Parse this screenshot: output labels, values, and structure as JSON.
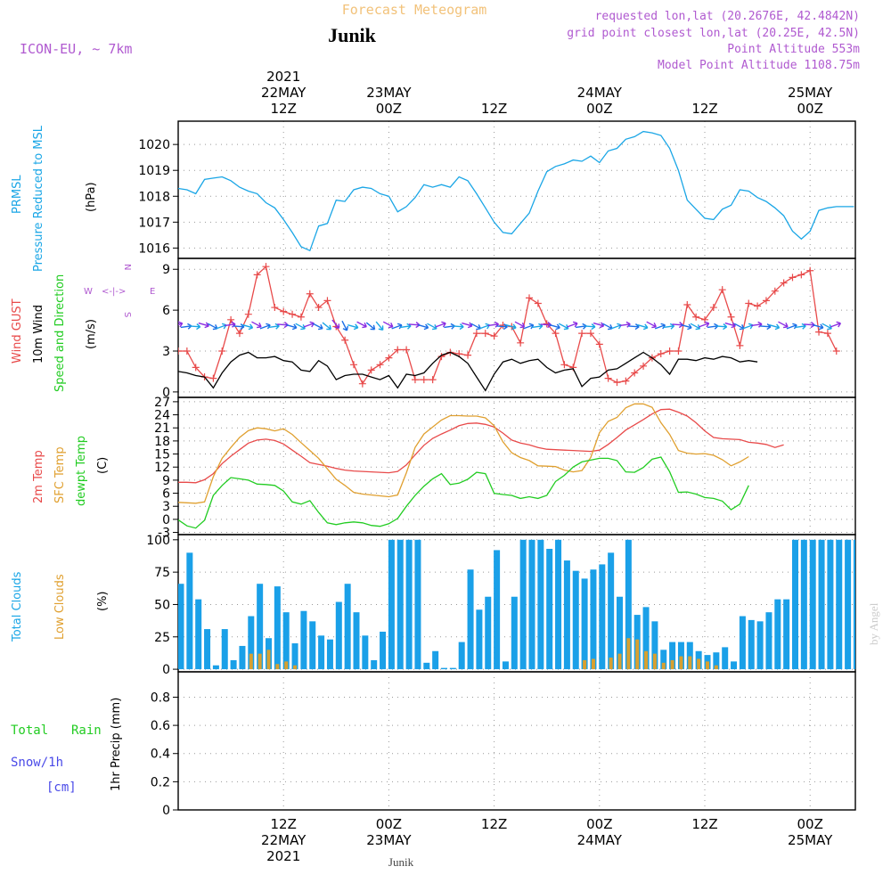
{
  "header": {
    "title": "Forecast Meteogram",
    "station": "Junik",
    "model": "ICON-EU, ~ 7km",
    "requested": "requested lon,lat (20.2676E, 42.4842N)",
    "gridpoint": "grid point closest lon,lat (20.25E, 42.5N)",
    "point_alt": "Point Altitude 553m",
    "model_alt": "Model Point Altitude 1108.75m",
    "footer_station": "Junik",
    "credit": "by Angel"
  },
  "colors": {
    "pressure": "#1aa6e6",
    "gust": "#e84a4a",
    "wind10m": "#000000",
    "temp2m": "#e84a4a",
    "sfc": "#e0a030",
    "dewpt": "#22cc22",
    "total_clouds": "#1aa0e8",
    "low_clouds": "#d8a030",
    "label_blue": "#1aa6e6",
    "label_red": "#e84a4a",
    "label_green": "#22cc22",
    "label_orange": "#e0a030",
    "label_purple": "#b05ad0",
    "snow_blue": "#4a4ae8"
  },
  "time_axis": {
    "top_labels": [
      {
        "lines": [
          "2021",
          "22MAY",
          "12Z"
        ]
      },
      {
        "lines": [
          "23MAY",
          "00Z"
        ]
      },
      {
        "lines": [
          "12Z"
        ]
      },
      {
        "lines": [
          "24MAY",
          "00Z"
        ]
      },
      {
        "lines": [
          "12Z"
        ]
      },
      {
        "lines": [
          "25MAY",
          "00Z"
        ]
      }
    ],
    "bottom_labels": [
      {
        "lines": [
          "12Z",
          "22MAY",
          "2021"
        ]
      },
      {
        "lines": [
          "00Z",
          "23MAY"
        ]
      },
      {
        "lines": [
          "12Z"
        ]
      },
      {
        "lines": [
          "00Z",
          "24MAY"
        ]
      },
      {
        "lines": [
          "12Z"
        ]
      },
      {
        "lines": [
          "00Z",
          "25MAY"
        ]
      }
    ]
  },
  "panel_labels": {
    "pressure": {
      "l1": "PRMSL",
      "l2": "Pressure Reduced to MSL",
      "unit": "(hPa)"
    },
    "wind": {
      "l1": "Wind GUST",
      "l2": "10m Wind",
      "l3": "Speed and Direction",
      "unit": "(m/s)",
      "compass_w": "W",
      "compass_e": "E",
      "compass_n": "N",
      "compass_s": "S"
    },
    "temp": {
      "l1": "2m Temp",
      "l2": "SFC Temp",
      "l3": "dewpt Temp",
      "unit": "(C)"
    },
    "cloud": {
      "l1": "Total Clouds",
      "l2": "Low Clouds",
      "unit": "(%)"
    },
    "precip": {
      "l1": "Total",
      "l1b": "Rain",
      "l2": "Snow/1h",
      "l3": "[cm]",
      "unit": "1hr Precip (mm)"
    }
  },
  "chart_data": [
    {
      "type": "line",
      "x_unit": "hours since 22MAY 00Z",
      "ylabel": "(hPa)",
      "ylim": [
        1015.6,
        1020.9
      ],
      "yticks": [
        1016,
        1017,
        1018,
        1019,
        1020
      ],
      "grid": true,
      "series": [
        {
          "name": "PRMSL",
          "x": [
            0,
            1,
            2,
            3,
            4,
            5,
            6,
            7,
            8,
            9,
            10,
            11,
            12,
            13,
            14,
            15,
            16,
            17,
            18,
            19,
            20,
            21,
            22,
            23,
            24,
            25,
            26,
            27,
            28,
            29,
            30,
            31,
            32,
            33,
            34,
            35,
            36,
            37,
            38,
            39,
            40,
            41,
            42,
            43,
            44,
            45,
            46,
            47,
            48,
            49,
            50,
            51,
            52,
            53,
            54,
            55,
            56,
            57,
            58,
            59,
            60,
            61,
            62,
            63,
            64,
            65,
            66,
            67,
            68,
            69,
            70,
            71,
            72,
            73,
            74,
            75,
            76,
            77
          ],
          "values": [
            1018.3,
            1018.25,
            1018.1,
            1018.65,
            1018.7,
            1018.75,
            1018.6,
            1018.35,
            1018.2,
            1018.1,
            1017.75,
            1017.55,
            1017.1,
            1016.6,
            1016.05,
            1015.9,
            1016.85,
            1016.95,
            1017.85,
            1017.8,
            1018.25,
            1018.35,
            1018.3,
            1018.1,
            1018.0,
            1017.4,
            1017.6,
            1017.95,
            1018.45,
            1018.35,
            1018.45,
            1018.35,
            1018.75,
            1018.6,
            1018.1,
            1017.55,
            1017.0,
            1016.6,
            1016.55,
            1016.95,
            1017.35,
            1018.2,
            1018.95,
            1019.15,
            1019.25,
            1019.4,
            1019.35,
            1019.55,
            1019.3,
            1019.75,
            1019.85,
            1020.2,
            1020.3,
            1020.5,
            1020.45,
            1020.35,
            1019.85,
            1019.0,
            1017.85,
            1017.5,
            1017.15,
            1017.1,
            1017.5,
            1017.65,
            1018.25,
            1018.2,
            1017.95,
            1017.8,
            1017.55,
            1017.25,
            1016.65,
            1016.35,
            1016.65,
            1017.45,
            1017.55,
            1017.6,
            1017.6,
            1017.6
          ]
        }
      ]
    },
    {
      "type": "line",
      "x_unit": "hours since 22MAY 00Z",
      "ylabel": "(m/s)",
      "ylim": [
        -0.4,
        9.8
      ],
      "yticks": [
        0,
        3,
        6,
        9
      ],
      "grid": true,
      "series": [
        {
          "name": "Wind GUST",
          "values": [
            3.0,
            3.0,
            1.8,
            1.1,
            1.0,
            3.0,
            5.3,
            4.3,
            5.7,
            8.6,
            9.2,
            6.2,
            5.9,
            5.7,
            5.5,
            7.2,
            6.2,
            6.7,
            4.8,
            3.8,
            2.0,
            0.6,
            1.6,
            2.0,
            2.5,
            3.1,
            3.1,
            0.9,
            0.9,
            0.9,
            2.6,
            2.9,
            2.8,
            2.7,
            4.3,
            4.3,
            4.1,
            4.9,
            4.8,
            3.6,
            6.9,
            6.5,
            5.0,
            4.3,
            2.0,
            1.8,
            4.3,
            4.3,
            3.5,
            1.0,
            0.7,
            0.8,
            1.4,
            1.9,
            2.5,
            2.8,
            3.0,
            3.0,
            6.4,
            5.5,
            5.3,
            6.2,
            7.5,
            5.5,
            3.4,
            6.5,
            6.3,
            6.7,
            7.4,
            8.0,
            8.4,
            8.6,
            8.9,
            4.4,
            4.3,
            3.0
          ]
        },
        {
          "name": "10m Wind",
          "values": [
            1.5,
            1.4,
            1.2,
            1.1,
            0.3,
            1.4,
            2.2,
            2.7,
            2.9,
            2.5,
            2.5,
            2.6,
            2.3,
            2.2,
            1.6,
            1.5,
            2.3,
            1.9,
            0.9,
            1.2,
            1.3,
            1.3,
            1.1,
            0.9,
            1.2,
            0.3,
            1.3,
            1.2,
            1.4,
            2.1,
            2.7,
            2.9,
            2.6,
            2.1,
            1.1,
            0.1,
            1.3,
            2.2,
            2.4,
            2.1,
            2.3,
            2.4,
            1.8,
            1.4,
            1.6,
            1.7,
            0.4,
            1.0,
            1.1,
            1.6,
            1.7,
            2.1,
            2.5,
            2.9,
            2.5,
            2.0,
            1.3,
            2.4,
            2.4,
            2.3,
            2.5,
            2.4,
            2.6,
            2.5,
            2.2,
            2.3,
            2.2
          ]
        }
      ]
    },
    {
      "type": "line",
      "x_unit": "hours since 22MAY 00Z",
      "ylabel": "(C)",
      "ylim": [
        -3.5,
        28
      ],
      "yticks": [
        -3,
        0,
        3,
        6,
        9,
        12,
        15,
        18,
        21,
        24,
        27
      ],
      "grid": true,
      "series": [
        {
          "name": "2m Temp",
          "values": [
            8.5,
            8.5,
            8.4,
            9.1,
            10.5,
            12.8,
            14.5,
            16.0,
            17.5,
            18.2,
            18.4,
            18.1,
            17.3,
            15.9,
            14.5,
            13.0,
            12.6,
            12.2,
            11.7,
            11.3,
            11.1,
            11.0,
            10.9,
            10.8,
            10.7,
            11.0,
            12.5,
            14.8,
            17.0,
            18.6,
            19.6,
            20.5,
            21.5,
            22.0,
            22.1,
            21.8,
            21.2,
            19.8,
            18.2,
            17.5,
            17.1,
            16.5,
            16.1,
            16.0,
            15.9,
            15.8,
            15.7,
            15.6,
            15.9,
            17.2,
            18.8,
            20.5,
            21.7,
            22.9,
            24.2,
            25.2,
            25.3,
            24.6,
            23.7,
            22.2,
            20.3,
            18.8,
            18.5,
            18.4,
            18.3,
            17.7,
            17.5,
            17.2,
            16.5,
            17.1
          ]
        },
        {
          "name": "SFC Temp",
          "values": [
            3.9,
            3.8,
            3.7,
            4.0,
            9.8,
            14.0,
            16.5,
            18.8,
            20.4,
            21.0,
            20.8,
            20.3,
            20.8,
            19.5,
            17.6,
            15.8,
            14.0,
            11.6,
            9.2,
            7.8,
            6.2,
            5.8,
            5.6,
            5.4,
            5.2,
            5.6,
            10.7,
            16.5,
            19.6,
            21.2,
            22.8,
            23.8,
            23.8,
            23.7,
            23.7,
            23.3,
            21.5,
            17.8,
            15.3,
            14.2,
            13.5,
            12.3,
            12.2,
            12.1,
            11.3,
            10.9,
            11.2,
            14.2,
            19.9,
            22.5,
            23.4,
            25.6,
            26.5,
            26.5,
            25.7,
            22.2,
            19.5,
            15.8,
            15.2,
            15.0,
            15.1,
            14.7,
            13.7,
            12.3,
            13.2,
            14.4
          ]
        },
        {
          "name": "dewpt Temp",
          "values": [
            -0.1,
            -1.5,
            -2.0,
            -0.2,
            5.5,
            7.8,
            9.6,
            9.3,
            9.0,
            8.1,
            8.0,
            7.8,
            6.5,
            4.0,
            3.5,
            4.3,
            1.6,
            -0.8,
            -1.2,
            -0.8,
            -0.6,
            -0.8,
            -1.4,
            -1.6,
            -1.0,
            0.2,
            3.0,
            5.5,
            7.6,
            9.3,
            10.5,
            8.0,
            8.3,
            9.2,
            10.8,
            10.5,
            6.0,
            5.7,
            5.5,
            4.8,
            5.2,
            4.8,
            5.5,
            8.7,
            10.1,
            12.0,
            13.2,
            13.6,
            14.0,
            14.0,
            13.5,
            10.9,
            10.8,
            11.9,
            13.8,
            14.3,
            10.9,
            6.2,
            6.3,
            5.8,
            5.0,
            4.8,
            4.2,
            2.2,
            3.5,
            7.8
          ]
        }
      ]
    },
    {
      "type": "bar",
      "x_unit": "hours since 22MAY 00Z",
      "ylabel": "(%)",
      "ylim": [
        -2,
        104
      ],
      "yticks": [
        0,
        25,
        50,
        75,
        100
      ],
      "grid": true,
      "series": [
        {
          "name": "Total Clouds",
          "values": [
            66,
            90,
            54,
            31,
            3,
            31,
            7,
            18,
            41,
            66,
            24,
            64,
            44,
            20,
            45,
            37,
            26,
            23,
            52,
            66,
            44,
            26,
            7,
            29,
            100,
            100,
            100,
            100,
            5,
            14,
            1,
            1,
            21,
            77,
            46,
            56,
            92,
            6,
            56,
            100,
            100,
            100,
            93,
            100,
            84,
            76,
            70,
            77,
            81,
            90,
            56,
            100,
            42,
            48,
            37,
            15,
            21,
            21,
            21,
            14,
            11,
            13,
            17,
            6,
            41,
            38,
            37,
            44,
            54,
            54,
            100,
            100,
            100,
            100,
            100,
            100,
            100,
            100,
            81
          ]
        },
        {
          "name": "Low Clouds",
          "values": [
            0,
            0,
            0,
            0,
            0,
            0,
            0,
            0,
            12,
            12,
            15,
            4,
            6,
            3,
            0,
            0,
            0,
            0,
            0,
            0,
            0,
            0,
            0,
            0,
            0,
            0,
            0,
            0,
            0,
            0,
            0,
            0,
            0,
            0,
            0,
            0,
            0,
            0,
            0,
            0,
            0,
            0,
            0,
            0,
            0,
            0,
            7,
            8,
            0,
            9,
            12,
            24,
            23,
            14,
            12,
            5,
            7,
            10,
            10,
            8,
            6,
            3,
            0,
            0,
            0,
            0,
            0,
            0,
            0,
            0,
            0,
            0,
            0,
            0,
            0,
            0,
            0,
            0,
            0
          ]
        }
      ]
    },
    {
      "type": "bar",
      "x_unit": "hours since 22MAY 00Z",
      "ylabel": "1hr Precip (mm)",
      "ylim": [
        0,
        0.98
      ],
      "yticks": [
        0,
        0.2,
        0.4,
        0.6,
        0.8
      ],
      "grid": true,
      "series": [
        {
          "name": "Total Rain",
          "values": []
        }
      ]
    }
  ]
}
